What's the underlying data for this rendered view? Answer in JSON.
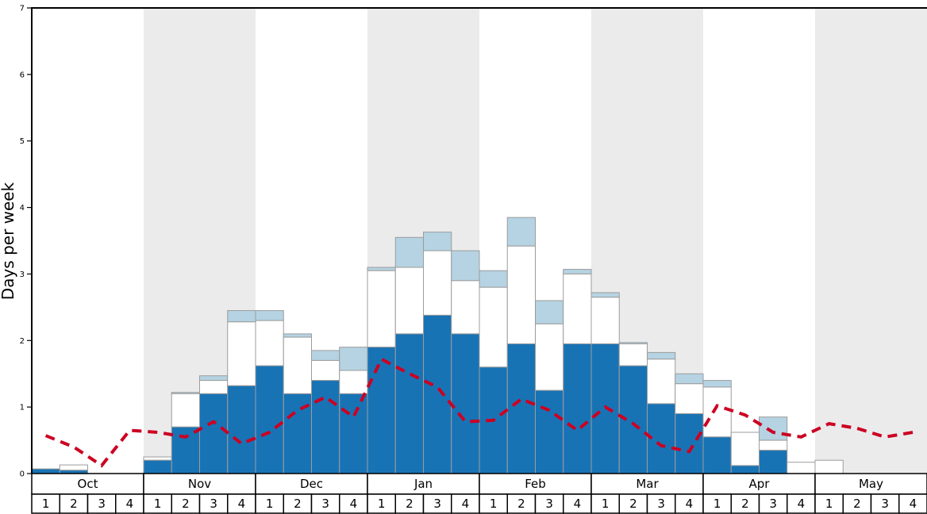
{
  "chart_data": {
    "type": "bar",
    "overlay": "line",
    "title": "",
    "xlabel": "",
    "ylabel": "Days per week",
    "ylim": [
      0,
      7
    ],
    "yticks": [
      0,
      1,
      2,
      3,
      4,
      5,
      6,
      7
    ],
    "grid": false,
    "legend": "none",
    "week_labels": [
      "1",
      "2",
      "3",
      "4"
    ],
    "months": [
      {
        "label": "Oct",
        "shaded": false
      },
      {
        "label": "Nov",
        "shaded": true
      },
      {
        "label": "Dec",
        "shaded": false
      },
      {
        "label": "Jan",
        "shaded": true
      },
      {
        "label": "Feb",
        "shaded": false
      },
      {
        "label": "Mar",
        "shaded": true
      },
      {
        "label": "Apr",
        "shaded": false
      },
      {
        "label": "May",
        "shaded": true
      }
    ],
    "colors": {
      "dark_blue": "#1873b5",
      "bar_white": "#ffffff",
      "light_blue": "#b5d3e2",
      "bar_border": "#9c9c9c",
      "band": "#ebebeb",
      "line_red": "#cc0022",
      "axis": "#000000"
    },
    "series": [
      {
        "name": "dark-blue-bar-segment",
        "role": "stacked-bar-bottom",
        "color_key": "dark_blue",
        "cumulative_top": [
          0.07,
          0.05,
          0,
          0,
          0.2,
          0.7,
          1.2,
          1.32,
          1.62,
          1.2,
          1.4,
          1.2,
          1.9,
          2.1,
          2.38,
          2.1,
          1.6,
          1.95,
          1.25,
          1.95,
          1.95,
          1.62,
          1.05,
          0.9,
          0.55,
          0.12,
          0.35,
          0,
          0,
          0,
          0,
          0
        ]
      },
      {
        "name": "white-bar-segment",
        "role": "stacked-bar-middle",
        "color_key": "bar_white",
        "cumulative_top": [
          0.07,
          0.13,
          0,
          0,
          0.25,
          1.2,
          1.4,
          2.28,
          2.3,
          2.05,
          1.7,
          1.55,
          3.05,
          3.1,
          3.35,
          2.9,
          2.8,
          3.42,
          2.25,
          3.0,
          2.65,
          1.95,
          1.72,
          1.35,
          1.3,
          0.62,
          0.5,
          0.17,
          0.2,
          0,
          0,
          0
        ]
      },
      {
        "name": "light-blue-bar-segment",
        "role": "stacked-bar-top",
        "color_key": "light_blue",
        "cumulative_top": [
          0.07,
          0.13,
          0,
          0,
          0.25,
          1.22,
          1.47,
          2.45,
          2.45,
          2.1,
          1.85,
          1.9,
          3.1,
          3.55,
          3.63,
          3.35,
          3.05,
          3.85,
          2.6,
          3.07,
          2.72,
          1.97,
          1.82,
          1.5,
          1.4,
          0.62,
          0.85,
          0.17,
          0.2,
          0,
          0,
          0
        ]
      },
      {
        "name": "red-dashed-line",
        "role": "line",
        "color_key": "line_red",
        "values": [
          0.57,
          0.4,
          0.12,
          0.65,
          0.62,
          0.55,
          0.78,
          0.45,
          0.62,
          0.95,
          1.15,
          0.85,
          1.72,
          1.5,
          1.3,
          0.78,
          0.8,
          1.12,
          0.95,
          0.65,
          1.0,
          0.75,
          0.42,
          0.33,
          1.02,
          0.88,
          0.62,
          0.55,
          0.75,
          0.68,
          0.55,
          0.62
        ]
      }
    ]
  }
}
